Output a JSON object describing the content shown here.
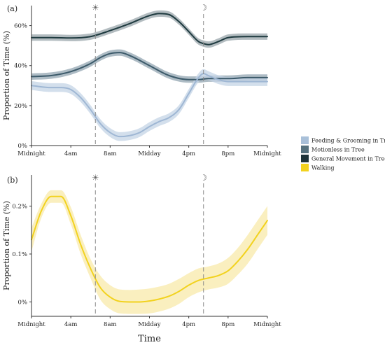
{
  "chart_data": [
    {
      "type": "line",
      "panel_label": "(a)",
      "ylabel": "Proportion of Time (%)",
      "xlabel": "",
      "x_ticks": [
        "Midnight",
        "4am",
        "8am",
        "Midday",
        "4pm",
        "8pm",
        "Midnight"
      ],
      "x_tick_hours": [
        0,
        4,
        8,
        12,
        16,
        20,
        24
      ],
      "xlim": [
        0,
        24
      ],
      "y_ticks": [
        "0%",
        "20%",
        "40%",
        "60%"
      ],
      "y_tick_values": [
        0,
        20,
        40,
        60
      ],
      "ylim": [
        0,
        70
      ],
      "grid": false,
      "vlines": [
        {
          "hour": 6.5,
          "icon": "sun-icon",
          "symbol": "☀"
        },
        {
          "hour": 17.5,
          "icon": "moon-icon",
          "symbol": "☽"
        }
      ],
      "series": [
        {
          "name": "General Movement in Tree",
          "color": "#1e3a3f",
          "band_color": "#9aa6ab",
          "band_halfwidth": 1.6,
          "x": [
            0,
            2,
            4,
            6,
            8,
            10,
            12,
            13,
            14,
            15,
            16,
            17,
            17.5,
            18,
            19,
            20,
            22,
            24
          ],
          "values": [
            54,
            54,
            53.8,
            54.5,
            57.5,
            61,
            65,
            66,
            65.5,
            62,
            57,
            52,
            51,
            50.5,
            52,
            54,
            54.5,
            54.5
          ]
        },
        {
          "name": "Motionless in Tree",
          "color": "#3c5a6a",
          "band_color": "#93a6b2",
          "band_halfwidth": 1.6,
          "x": [
            0,
            2,
            4,
            6,
            7,
            8,
            9,
            10,
            12,
            14,
            16,
            17,
            18,
            20,
            22,
            24
          ],
          "values": [
            34.5,
            35,
            37,
            41,
            44,
            46,
            46.5,
            45,
            40,
            35,
            33,
            33,
            33.5,
            33.5,
            34,
            34
          ]
        },
        {
          "name": "Feeding & Grooming in Tree",
          "color": "#9fb7d4",
          "band_color": "#c4d4e6",
          "band_halfwidth": 2.2,
          "x": [
            0,
            2,
            3,
            4,
            5,
            6,
            7,
            8,
            9,
            10,
            11,
            12,
            13,
            14,
            15,
            16,
            17,
            17.5,
            18,
            19,
            20,
            22,
            24
          ],
          "values": [
            30,
            29,
            29,
            28,
            24,
            18,
            11,
            6.5,
            4.5,
            5,
            6.5,
            9.5,
            12,
            14,
            18,
            26,
            34,
            36,
            35,
            33,
            32,
            32,
            32
          ]
        }
      ]
    },
    {
      "type": "line",
      "panel_label": "(b)",
      "ylabel": "Proportion of Time (%)",
      "xlabel": "Time",
      "x_ticks": [
        "Midnight",
        "4am",
        "8am",
        "Midday",
        "4pm",
        "8pm",
        "Midnight"
      ],
      "x_tick_hours": [
        0,
        4,
        8,
        12,
        16,
        20,
        24
      ],
      "xlim": [
        0,
        24
      ],
      "y_ticks": [
        "0%",
        "0.1%",
        "0.2%"
      ],
      "y_tick_values": [
        0,
        0.1,
        0.2
      ],
      "ylim": [
        -0.03,
        0.265
      ],
      "grid": false,
      "vlines": [
        {
          "hour": 6.5,
          "icon": "sun-icon",
          "symbol": "☀"
        },
        {
          "hour": 17.5,
          "icon": "moon-icon",
          "symbol": "☽"
        }
      ],
      "series": [
        {
          "name": "Walking",
          "color": "#f2d21e",
          "band_color": "#f8e9a9",
          "x": [
            0,
            1,
            2,
            3,
            4,
            5,
            6,
            7,
            8,
            9,
            10,
            11,
            12,
            13,
            14,
            15,
            16,
            17,
            18,
            19,
            20,
            21,
            22,
            23,
            24
          ],
          "values": [
            0.13,
            0.19,
            0.22,
            0.22,
            0.18,
            0.12,
            0.07,
            0.03,
            0.01,
            0.001,
            0.0,
            0.0,
            0.002,
            0.006,
            0.012,
            0.022,
            0.035,
            0.045,
            0.05,
            0.055,
            0.065,
            0.085,
            0.11,
            0.14,
            0.17
          ],
          "upper": [
            0.155,
            0.205,
            0.233,
            0.233,
            0.198,
            0.14,
            0.09,
            0.055,
            0.035,
            0.026,
            0.025,
            0.026,
            0.028,
            0.032,
            0.038,
            0.048,
            0.06,
            0.07,
            0.074,
            0.08,
            0.092,
            0.113,
            0.14,
            0.17,
            0.2
          ],
          "lower": [
            0.105,
            0.175,
            0.207,
            0.207,
            0.162,
            0.1,
            0.05,
            0.005,
            -0.015,
            -0.024,
            -0.025,
            -0.025,
            -0.024,
            -0.02,
            -0.014,
            -0.004,
            0.01,
            0.02,
            0.026,
            0.03,
            0.038,
            0.057,
            0.08,
            0.11,
            0.14
          ]
        }
      ]
    }
  ],
  "legend": {
    "placement": "right",
    "items": [
      {
        "label": "Feeding & Grooming in Tree",
        "color": "#a9c0d9"
      },
      {
        "label": "Motionless in Tree",
        "color": "#56727f"
      },
      {
        "label": "General Movement in Tree",
        "color": "#1d3339"
      },
      {
        "label": "Walking",
        "color": "#f2d21e"
      }
    ]
  }
}
